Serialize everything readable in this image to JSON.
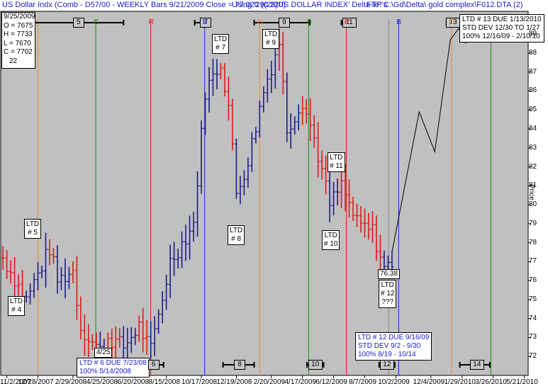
{
  "header": {
    "left": "US Dollar Indx (Comb - D57/00 - WEEKLY Bars  9/21/2009 Close = 77.020 (0.220)",
    "mid": "Using '29(29)US DOLLAR INDEX' Delta TP's",
    "right": "File:  C:\\Gd\\Delta\\ gold complex\\F012.DTA (2)"
  },
  "ohlc": {
    "date": "9/25/2009",
    "open": "O = 7675",
    "high": "H = 7733",
    "low": "L = 7670",
    "close": "C = 7702",
    "count": "22"
  },
  "colors": {
    "plot_bg": "#c0c0c0",
    "up_bar": "#1c1c8c",
    "down_bar": "#e01818",
    "orange_line": "#f08a28",
    "green_line": "#109010",
    "red_line": "#e01818",
    "blue_line": "#2020e0",
    "gray_line": "#808080",
    "projection": "#000000",
    "header_text": "#1a1ad0"
  },
  "cycle_markers": [
    {
      "label": "5",
      "x": "2008-03-10",
      "lo": "2007-12-20",
      "hi": "2008-05-30"
    },
    {
      "label": "7",
      "x": "2008-10-25",
      "lo": "2008-10-05",
      "hi": "2008-10-28"
    },
    {
      "label": "9",
      "x": "2009-03-15",
      "lo": "2009-01-20",
      "hi": "2009-04-30"
    },
    {
      "label": "11",
      "x": "2009-07-10",
      "lo": "2009-06-26",
      "hi": "2009-07-20"
    },
    {
      "label": "13",
      "x": "2010-01-13",
      "lo": "2010-01-01",
      "hi": "2010-01-27"
    },
    {
      "label": "6",
      "x": "2008-07-23",
      "lo": "2008-07-01",
      "hi": "2008-08-10"
    },
    {
      "label": "8",
      "x": "2008-12-25",
      "lo": "2008-11-25",
      "hi": "2009-01-20"
    },
    {
      "label": "10",
      "x": "2009-05-10",
      "lo": "2009-04-25",
      "hi": "2009-05-25"
    },
    {
      "label": "12",
      "x": "2009-09-16",
      "lo": "2009-09-02",
      "hi": "2009-09-30"
    },
    {
      "label": "14",
      "x": "2010-02-25",
      "lo": "2010-01-25",
      "hi": "2010-03-20"
    }
  ],
  "vertical_lines": [
    {
      "date": "2007-12-28",
      "color": "orange",
      "letter": ""
    },
    {
      "date": "2008-04-10",
      "color": "green",
      "letter": "G"
    },
    {
      "date": "2008-07-18",
      "color": "red",
      "letter": "R"
    },
    {
      "date": "2008-10-23",
      "color": "blue",
      "letter": "B"
    },
    {
      "date": "2009-01-30",
      "color": "orange",
      "letter": "O"
    },
    {
      "date": "2009-04-28",
      "color": "green",
      "letter": "G"
    },
    {
      "date": "2009-07-05",
      "color": "red",
      "letter": "R"
    },
    {
      "date": "2009-09-19",
      "color": "gray",
      "letter": ""
    },
    {
      "date": "2009-10-07",
      "color": "blue",
      "letter": "B"
    },
    {
      "date": "2010-01-10",
      "color": "orange",
      "letter": "O"
    },
    {
      "date": "2010-03-22",
      "color": "green",
      "letter": ""
    }
  ],
  "ltd_labels": [
    {
      "lines": [
        "LTD",
        "# 4"
      ]
    },
    {
      "lines": [
        "LTD",
        "# 5"
      ]
    },
    {
      "lines": [
        "LTD",
        "# 7"
      ]
    },
    {
      "lines": [
        "LTD",
        "# 8"
      ]
    },
    {
      "lines": [
        "LTD",
        "# 9"
      ]
    },
    {
      "lines": [
        "LTD",
        "# 10"
      ]
    },
    {
      "lines": [
        "LTD",
        "# 11"
      ]
    },
    {
      "lines": [
        "LTD",
        "# 12",
        "???"
      ]
    }
  ],
  "ltd_info": {
    "ltd6": [
      "LTD # 6 DUE 7/23/08",
      "100% 5/14/2008"
    ],
    "ltd12": [
      "LTD # 12 DUE 9/16/09",
      "STD DEV 9/2 - 9/30",
      "100% 8/19 - 10/14"
    ],
    "ltd13": [
      "LTD # 13 DUE 1/13/2010",
      "STD DEV 12/30 TO 1/27",
      "100% 12/16/09 - 2/10/10"
    ]
  },
  "value_labels": {
    "low_425": "4/25",
    "last_low": "76.38"
  },
  "chart_data": {
    "type": "bar",
    "subtype": "ohlc",
    "title": "US Dollar Indx (Comb - D57/00 - WEEKLY Bars  9/21/2009 Close = 77.020 (0.220)",
    "ylabel": "Price",
    "ylim": [
      71,
      90.2
    ],
    "xlim": [
      "2007-10-22",
      "2010-05-28"
    ],
    "x_ticks": [
      "11/2/2007",
      "12/28/2007",
      "2/29/2008",
      "4/25/2008",
      "6/20/2008",
      "8/15/2008",
      "10/17/2008",
      "12/19/2008",
      "2/20/2009",
      "4/17/2009",
      "6/12/2009",
      "8/7/2009",
      "10/2/2009",
      "12/4/2009",
      "1/29/2010",
      "3/26/2010",
      "5/21/2010"
    ],
    "y_ticks": [
      72,
      73,
      74,
      75,
      76,
      77,
      78,
      79,
      80,
      81,
      82,
      83,
      84,
      85,
      86,
      87,
      88,
      89
    ],
    "anchors": [
      {
        "date": "2007-10-26",
        "close": 77.2,
        "color": "down"
      },
      {
        "date": "2007-12-07",
        "close": 75.0,
        "color": "down"
      },
      {
        "date": "2008-01-18",
        "close": 77.7,
        "color": "up"
      },
      {
        "date": "2008-02-01",
        "close": 76.0,
        "color": "down"
      },
      {
        "date": "2008-02-29",
        "close": 76.5,
        "color": "up"
      },
      {
        "date": "2008-03-14",
        "close": 73.5,
        "color": "down"
      },
      {
        "date": "2008-04-18",
        "close": 72.3,
        "color": "down"
      },
      {
        "date": "2008-05-02",
        "close": 73.0,
        "color": "up"
      },
      {
        "date": "2008-05-30",
        "close": 72.5,
        "color": "down"
      },
      {
        "date": "2008-06-27",
        "close": 73.6,
        "color": "up"
      },
      {
        "date": "2008-07-18",
        "close": 72.3,
        "color": "down"
      },
      {
        "date": "2008-08-22",
        "close": 77.0,
        "color": "up"
      },
      {
        "date": "2008-09-19",
        "close": 78.3,
        "color": "up"
      },
      {
        "date": "2008-10-03",
        "close": 79.0,
        "color": "up"
      },
      {
        "date": "2008-10-24",
        "close": 86.0,
        "color": "up"
      },
      {
        "date": "2008-11-21",
        "close": 87.5,
        "color": "up"
      },
      {
        "date": "2008-12-05",
        "close": 85.2,
        "color": "down"
      },
      {
        "date": "2008-12-19",
        "close": 80.6,
        "color": "down"
      },
      {
        "date": "2009-01-09",
        "close": 82.3,
        "color": "up"
      },
      {
        "date": "2009-02-06",
        "close": 86.0,
        "color": "up"
      },
      {
        "date": "2009-03-06",
        "close": 88.6,
        "color": "up"
      },
      {
        "date": "2009-03-20",
        "close": 84.0,
        "color": "down"
      },
      {
        "date": "2009-04-17",
        "close": 85.5,
        "color": "up"
      },
      {
        "date": "2009-05-08",
        "close": 83.5,
        "color": "down"
      },
      {
        "date": "2009-06-05",
        "close": 80.0,
        "color": "down"
      },
      {
        "date": "2009-06-26",
        "close": 81.0,
        "color": "up"
      },
      {
        "date": "2009-07-24",
        "close": 79.0,
        "color": "down"
      },
      {
        "date": "2009-08-21",
        "close": 78.6,
        "color": "down"
      },
      {
        "date": "2009-09-11",
        "close": 76.6,
        "color": "down"
      },
      {
        "date": "2009-09-25",
        "close": 77.0,
        "color": "up"
      }
    ],
    "projection": [
      {
        "date": "2009-09-25",
        "price": 77.5
      },
      {
        "date": "2009-11-13",
        "price": 84.9
      },
      {
        "date": "2009-12-11",
        "price": 82.8
      },
      {
        "date": "2010-01-08",
        "price": 88.7
      },
      {
        "date": "2010-01-23",
        "price": 89.3
      },
      {
        "date": "2010-02-05",
        "price": 88.5
      }
    ]
  }
}
